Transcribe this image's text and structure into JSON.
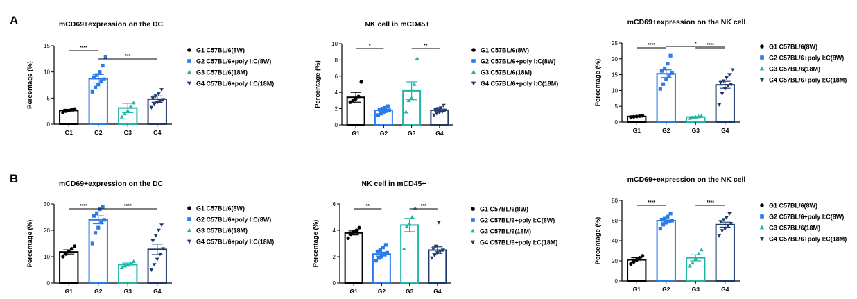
{
  "panels": [
    {
      "letter": "A"
    },
    {
      "letter": "B"
    }
  ],
  "colors": {
    "G1": "#000000",
    "G2": "#2a7ae8",
    "G3": "#1fb5a5",
    "G4": "#1f3a68"
  },
  "legend_items": [
    {
      "label": "G1 C57BL/6(8W)",
      "color": "#000000",
      "marker": "circle"
    },
    {
      "label": "G2 C57BL/6+poly I:C(8W)",
      "color": "#2a7ae8",
      "marker": "square"
    },
    {
      "label": "G3 C57BL/6(18M)",
      "color": "#1fb5a5",
      "marker": "triangle-up"
    },
    {
      "label": "G4 C57BL/6+poly I:C(18M)",
      "color": "#1f3a68",
      "marker": "triangle-down"
    }
  ],
  "chart_data": [
    {
      "type": "bar",
      "panel": "A",
      "title": "mCD69+expression on the DC",
      "ylabel": "Percentage (%)",
      "ylim": [
        0,
        15
      ],
      "yticks": [
        0,
        5,
        10,
        15
      ],
      "categories": [
        "G1",
        "G2",
        "G3",
        "G4"
      ],
      "means": [
        2.6,
        8.7,
        3.1,
        4.8
      ],
      "sem": [
        0.25,
        0.8,
        0.9,
        0.6
      ],
      "points": [
        [
          2.2,
          2.5,
          2.6,
          2.8,
          2.9
        ],
        [
          6.2,
          7.0,
          7.6,
          8.2,
          8.6,
          9.0,
          9.4,
          10.0,
          11.2,
          12.8
        ],
        [
          1.4,
          2.0,
          2.6,
          3.4,
          4.1
        ],
        [
          3.2,
          3.8,
          4.1,
          4.4,
          4.7,
          5.0,
          5.4,
          5.8,
          6.6
        ]
      ],
      "significance": [
        {
          "from": 0,
          "to": 1,
          "label": "****"
        },
        {
          "from": 1,
          "to": 3,
          "label": "***"
        }
      ],
      "legend": "right",
      "grid": false
    },
    {
      "type": "bar",
      "panel": "A",
      "title": "NK cell in mCD45+",
      "ylabel": "Percentage (%)",
      "ylim": [
        0,
        10
      ],
      "yticks": [
        0,
        2,
        4,
        6,
        8,
        10
      ],
      "categories": [
        "G1",
        "G2",
        "G3",
        "G4"
      ],
      "means": [
        3.4,
        1.8,
        4.2,
        1.8
      ],
      "sem": [
        0.6,
        0.15,
        1.1,
        0.15
      ],
      "points": [
        [
          2.8,
          3.0,
          3.2,
          3.5,
          5.3
        ],
        [
          1.2,
          1.4,
          1.6,
          1.7,
          1.8,
          1.9,
          2.0,
          2.1,
          2.3
        ],
        [
          1.6,
          3.0,
          3.3,
          5.0,
          8.2
        ],
        [
          1.2,
          1.4,
          1.5,
          1.6,
          1.8,
          1.9,
          2.0,
          2.1,
          2.4
        ]
      ],
      "significance": [
        {
          "from": 0,
          "to": 1,
          "label": "*"
        },
        {
          "from": 2,
          "to": 3,
          "label": "**"
        }
      ],
      "legend": "right",
      "grid": false
    },
    {
      "type": "bar",
      "panel": "A",
      "title": "mCD69+expression on the NK cell",
      "ylabel": "Percentage (%)",
      "ylim": [
        0,
        25
      ],
      "yticks": [
        0,
        5,
        10,
        15,
        20,
        25
      ],
      "categories": [
        "G1",
        "G2",
        "G3",
        "G4"
      ],
      "means": [
        1.8,
        15.3,
        1.6,
        11.8
      ],
      "sem": [
        0.1,
        1.2,
        0.2,
        1.1
      ],
      "points": [
        [
          1.6,
          1.7,
          1.8,
          1.9,
          2.0
        ],
        [
          10.5,
          12.0,
          13.5,
          14.5,
          15.5,
          16.2,
          17.0,
          18.5,
          21.0
        ],
        [
          1.2,
          1.4,
          1.6,
          1.8,
          2.0
        ],
        [
          5.5,
          9.0,
          10.5,
          11.5,
          12.0,
          12.5,
          13.0,
          14.0,
          15.0,
          16.5
        ]
      ],
      "significance": [
        {
          "from": 0,
          "to": 1,
          "label": "****"
        },
        {
          "from": 1,
          "to": 3,
          "label": "*"
        },
        {
          "from": 2,
          "to": 3,
          "label": "****"
        }
      ],
      "legend": "right",
      "grid": false
    },
    {
      "type": "bar",
      "panel": "B",
      "title": "mCD69+expression on the DC",
      "ylabel": "Percentage (%)",
      "ylim": [
        0,
        30
      ],
      "yticks": [
        0,
        10,
        20,
        30
      ],
      "categories": [
        "G1",
        "G2",
        "G3",
        "G4"
      ],
      "means": [
        11.8,
        24.0,
        7.0,
        12.8
      ],
      "sem": [
        0.8,
        1.5,
        0.6,
        2.0
      ],
      "points": [
        [
          10.0,
          11.0,
          12.0,
          13.0,
          14.0
        ],
        [
          15.0,
          19.0,
          21.0,
          23.0,
          24.0,
          25.5,
          26.5,
          28.0,
          29.0
        ],
        [
          5.8,
          6.5,
          7.0,
          7.5,
          8.2
        ],
        [
          5.0,
          7.0,
          9.0,
          11.0,
          13.0,
          16.0,
          18.0,
          20.0,
          22.0
        ]
      ],
      "significance": [
        {
          "from": 0,
          "to": 1,
          "label": "****"
        },
        {
          "from": 1,
          "to": 3,
          "label": "****"
        }
      ],
      "legend": "right",
      "grid": false
    },
    {
      "type": "bar",
      "panel": "B",
      "title": "NK cell in mCD45+",
      "ylabel": "Percentage (%)",
      "ylim": [
        0,
        6
      ],
      "yticks": [
        0,
        2,
        4,
        6
      ],
      "categories": [
        "G1",
        "G2",
        "G3",
        "G4"
      ],
      "means": [
        3.8,
        2.2,
        4.4,
        2.5
      ],
      "sem": [
        0.15,
        0.15,
        0.5,
        0.25
      ],
      "points": [
        [
          3.4,
          3.7,
          3.9,
          4.0,
          4.2
        ],
        [
          1.7,
          1.9,
          2.0,
          2.2,
          2.3,
          2.4,
          2.5,
          2.7,
          2.9
        ],
        [
          2.6,
          4.3,
          4.5,
          5.0,
          5.7
        ],
        [
          1.9,
          2.1,
          2.3,
          2.4,
          2.5,
          2.6,
          2.8,
          4.6
        ]
      ],
      "significance": [
        {
          "from": 0,
          "to": 1,
          "label": "**"
        },
        {
          "from": 2,
          "to": 3,
          "label": "***"
        }
      ],
      "legend": "right",
      "grid": false
    },
    {
      "type": "bar",
      "panel": "B",
      "title": "mCD69+expression on the NK cell",
      "ylabel": "Percentage (%)",
      "ylim": [
        0,
        80
      ],
      "yticks": [
        0,
        20,
        40,
        60,
        80
      ],
      "categories": [
        "G1",
        "G2",
        "G3",
        "G4"
      ],
      "means": [
        21.0,
        60.0,
        23.0,
        56.0
      ],
      "sem": [
        2.0,
        1.5,
        3.0,
        2.5
      ],
      "points": [
        [
          17.0,
          19.0,
          21.0,
          23.0,
          25.0
        ],
        [
          52.0,
          56.0,
          58.0,
          59.0,
          60.0,
          61.0,
          62.0,
          64.0,
          67.0
        ],
        [
          15.0,
          18.0,
          22.0,
          27.0,
          31.0
        ],
        [
          45.0,
          50.0,
          52.0,
          55.0,
          57.0,
          59.0,
          61.0,
          63.0,
          67.0
        ]
      ],
      "significance": [
        {
          "from": 0,
          "to": 1,
          "label": "****"
        },
        {
          "from": 2,
          "to": 3,
          "label": "****"
        }
      ],
      "legend": "right",
      "grid": false
    }
  ]
}
